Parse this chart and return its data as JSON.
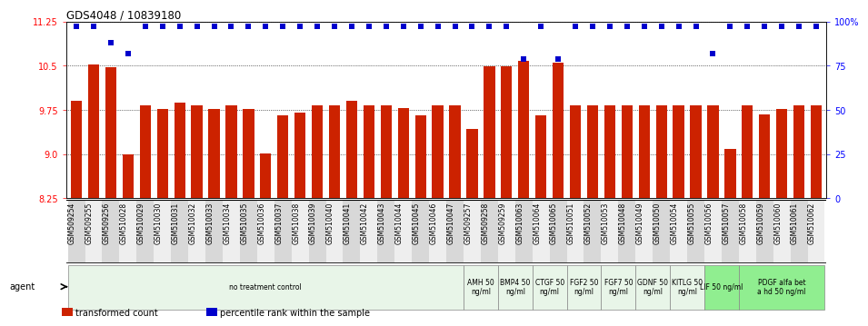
{
  "title": "GDS4048 / 10839180",
  "samples": [
    "GSM509254",
    "GSM509255",
    "GSM509256",
    "GSM510028",
    "GSM510029",
    "GSM510030",
    "GSM510031",
    "GSM510032",
    "GSM510033",
    "GSM510034",
    "GSM510035",
    "GSM510036",
    "GSM510037",
    "GSM510038",
    "GSM510039",
    "GSM510040",
    "GSM510041",
    "GSM510042",
    "GSM510043",
    "GSM510044",
    "GSM510045",
    "GSM510046",
    "GSM510047",
    "GSM509257",
    "GSM509258",
    "GSM509259",
    "GSM510063",
    "GSM510064",
    "GSM510065",
    "GSM510051",
    "GSM510052",
    "GSM510053",
    "GSM510048",
    "GSM510049",
    "GSM510050",
    "GSM510054",
    "GSM510055",
    "GSM510056",
    "GSM510057",
    "GSM510058",
    "GSM510059",
    "GSM510060",
    "GSM510061",
    "GSM510062"
  ],
  "bar_values": [
    9.9,
    10.52,
    10.47,
    9.0,
    9.82,
    9.76,
    9.88,
    9.82,
    9.76,
    9.82,
    9.76,
    9.01,
    9.66,
    9.7,
    9.82,
    9.82,
    9.91,
    9.82,
    9.82,
    9.78,
    9.66,
    9.82,
    9.82,
    9.42,
    10.49,
    10.49,
    10.58,
    9.65,
    10.55,
    9.82,
    9.82,
    9.82,
    9.82,
    9.82,
    9.82,
    9.82,
    9.82,
    9.82,
    9.08,
    9.82,
    9.68,
    9.76,
    9.82,
    9.82
  ],
  "percentile_values": [
    97,
    97,
    88,
    82,
    97,
    97,
    97,
    97,
    97,
    97,
    97,
    97,
    97,
    97,
    97,
    97,
    97,
    97,
    97,
    97,
    97,
    97,
    97,
    97,
    97,
    97,
    79,
    97,
    79,
    97,
    97,
    97,
    97,
    97,
    97,
    97,
    97,
    82,
    97,
    97,
    97,
    97,
    97,
    97
  ],
  "ylim_left": [
    8.25,
    11.25
  ],
  "ylim_right": [
    0,
    100
  ],
  "yticks_left": [
    8.25,
    9.0,
    9.75,
    10.5,
    11.25
  ],
  "yticks_right": [
    0,
    25,
    50,
    75,
    100
  ],
  "bar_color": "#cc2200",
  "percentile_color": "#0000cc",
  "groups": [
    {
      "label": "no treatment control",
      "start": 0,
      "end": 23,
      "color": "#e8f5e8"
    },
    {
      "label": "AMH 50\nng/ml",
      "start": 23,
      "end": 25,
      "color": "#e8f5e8"
    },
    {
      "label": "BMP4 50\nng/ml",
      "start": 25,
      "end": 27,
      "color": "#e8f5e8"
    },
    {
      "label": "CTGF 50\nng/ml",
      "start": 27,
      "end": 29,
      "color": "#e8f5e8"
    },
    {
      "label": "FGF2 50\nng/ml",
      "start": 29,
      "end": 31,
      "color": "#e8f5e8"
    },
    {
      "label": "FGF7 50\nng/ml",
      "start": 31,
      "end": 33,
      "color": "#e8f5e8"
    },
    {
      "label": "GDNF 50\nng/ml",
      "start": 33,
      "end": 35,
      "color": "#e8f5e8"
    },
    {
      "label": "KITLG 50\nng/ml",
      "start": 35,
      "end": 37,
      "color": "#e8f5e8"
    },
    {
      "label": "LIF 50 ng/ml",
      "start": 37,
      "end": 39,
      "color": "#90ee90"
    },
    {
      "label": "PDGF alfa bet\na hd 50 ng/ml",
      "start": 39,
      "end": 44,
      "color": "#90ee90"
    }
  ],
  "legend_bar_label": "transformed count",
  "legend_dot_label": "percentile rank within the sample",
  "agent_label": "agent"
}
